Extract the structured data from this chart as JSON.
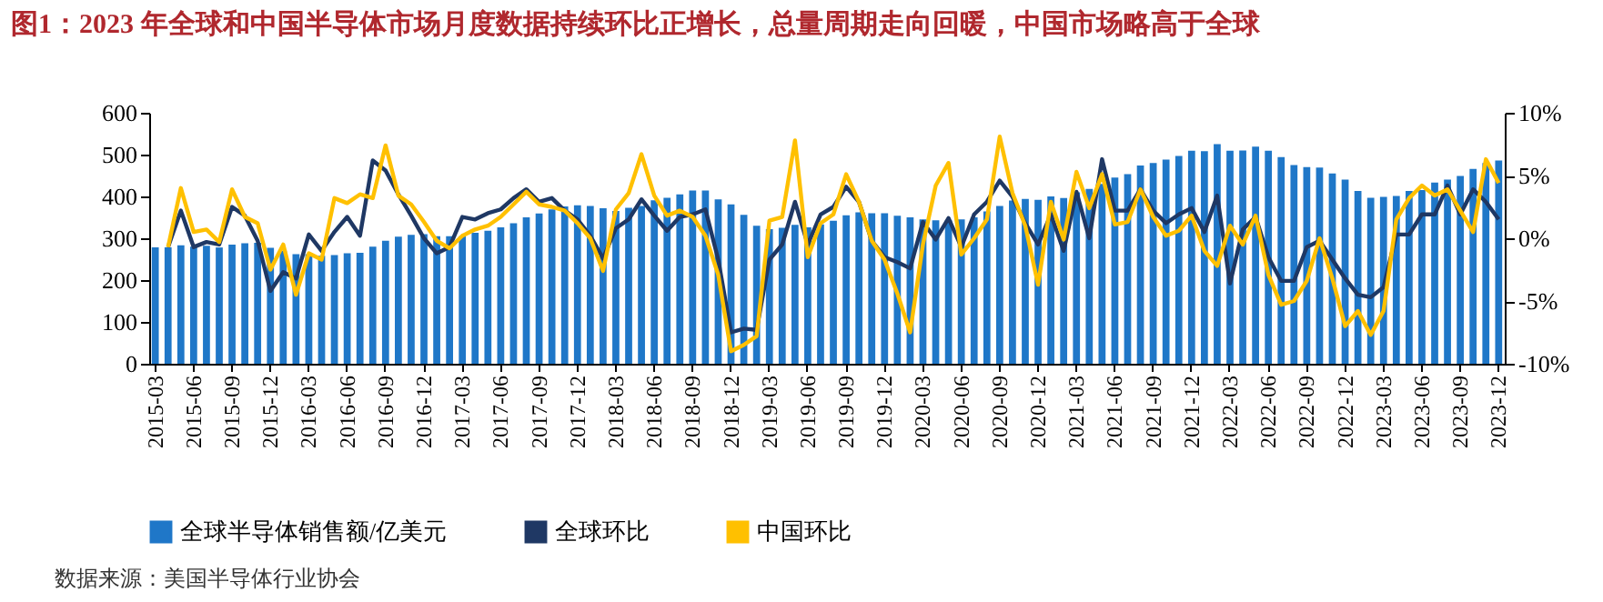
{
  "chart_data": {
    "type": "bar",
    "title": "图1：2023 年全球和中国半导体市场月度数据持续环比正增长，总量周期走向回暖，中国市场略高于全球",
    "categories": [
      "2015-03",
      null,
      null,
      "2015-06",
      null,
      null,
      "2015-09",
      null,
      null,
      "2015-12",
      null,
      null,
      "2016-03",
      null,
      null,
      "2016-06",
      null,
      null,
      "2016-09",
      null,
      null,
      "2016-12",
      null,
      null,
      "2017-03",
      null,
      null,
      "2017-06",
      null,
      null,
      "2017-09",
      null,
      null,
      "2017-12",
      null,
      null,
      "2018-03",
      null,
      null,
      "2018-06",
      null,
      null,
      "2018-09",
      null,
      null,
      "2018-12",
      null,
      null,
      "2019-03",
      null,
      null,
      "2019-06",
      null,
      null,
      "2019-09",
      null,
      null,
      "2019-12",
      null,
      null,
      "2020-03",
      null,
      null,
      "2020-06",
      null,
      null,
      "2020-09",
      null,
      null,
      "2020-12",
      null,
      null,
      "2021-03",
      null,
      null,
      "2021-06",
      null,
      null,
      "2021-09",
      null,
      null,
      "2021-12",
      null,
      null,
      "2022-03",
      null,
      null,
      "2022-06",
      null,
      null,
      "2022-09",
      null,
      null,
      "2022-12",
      null,
      null,
      "2023-03",
      null,
      null,
      "2023-06",
      null,
      null,
      "2023-09",
      null,
      null,
      "2023-12"
    ],
    "series": [
      {
        "name": "全球半导体销售额/亿美元",
        "color": "#1f77c8",
        "values": [
          278,
          278,
          283,
          280,
          282,
          278,
          285,
          288,
          289,
          277,
          270,
          262,
          262,
          258,
          260,
          264,
          265,
          280,
          294,
          304,
          308,
          310,
          305,
          305,
          305,
          313,
          318,
          326,
          336,
          350,
          359,
          369,
          376,
          379,
          377,
          372,
          365,
          373,
          377,
          391,
          397,
          405,
          414,
          414,
          393,
          381,
          356,
          330,
          322,
          325,
          332,
          326,
          333,
          342,
          355,
          362,
          360,
          360,
          354,
          350,
          345,
          343,
          343,
          345,
          350,
          364,
          377,
          390,
          394,
          392,
          400,
          396,
          410,
          418,
          430,
          445,
          453,
          474,
          480,
          488,
          497,
          509,
          508,
          525,
          509,
          510,
          519,
          509,
          494,
          475,
          470,
          469,
          455,
          440,
          413,
          397,
          399,
          401,
          413,
          415,
          433,
          440,
          449,
          466,
          480,
          486
        ]
      },
      {
        "name": "全球环比",
        "type": "line",
        "axis": "y2",
        "color": "#1f3864",
        "values": [
          null,
          -0.7,
          2.2,
          -0.7,
          -0.3,
          -0.5,
          2.5,
          1.8,
          -0.2,
          -4.2,
          -2.7,
          -3.2,
          0.3,
          -1.0,
          0.5,
          1.7,
          0.2,
          6.2,
          5.4,
          3.5,
          1.8,
          0,
          -1.2,
          -0.7,
          1.7,
          1.5,
          2.0,
          2.3,
          3.2,
          3.9,
          2.9,
          3.2,
          2.2,
          1.5,
          0.2,
          -1.6,
          0.8,
          1.5,
          3.1,
          1.8,
          0.6,
          1.7,
          1.9,
          2.3,
          -1.7,
          -7.5,
          -7.2,
          -7.3,
          -1.7,
          -0.5,
          2.9,
          -0.5,
          1.9,
          2.5,
          4.1,
          2.9,
          -0.2,
          -1.5,
          -1.9,
          -2.4,
          1.3,
          -0.1,
          1.6,
          -0.7,
          1.9,
          2.9,
          4.6,
          3.3,
          1.2,
          -0.5,
          1.9,
          -1.0,
          3.7,
          0,
          6.3,
          2.2,
          2.2,
          3.9,
          2.2,
          1.2,
          1.9,
          2.4,
          0.5,
          3.4,
          -3.6,
          0.7,
          1.7,
          -1.5,
          -3.4,
          -3.4,
          -0.7,
          -0.2,
          -1.7,
          -3.2,
          -4.5,
          -4.7,
          -3.9,
          0.3,
          0.3,
          1.9,
          1.9,
          4.2,
          1.9,
          3.9,
          2.9,
          1.5
        ]
      },
      {
        "name": "中国环比",
        "type": "line",
        "axis": "y2",
        "color": "#ffc000",
        "values": [
          null,
          -0.7,
          4.0,
          0.5,
          0.7,
          -0.3,
          3.9,
          1.7,
          1.2,
          -2.5,
          -0.5,
          -4.5,
          -1.2,
          -1.7,
          3.2,
          2.8,
          3.5,
          3.2,
          7.4,
          3.4,
          2.7,
          1.3,
          -0.2,
          -0.8,
          0.2,
          0.7,
          1.0,
          1.7,
          2.7,
          3.7,
          2.7,
          2.5,
          2.2,
          1.2,
          0,
          -2.6,
          2.3,
          3.6,
          6.7,
          3.4,
          1.8,
          2.2,
          1.7,
          0.2,
          -2.9,
          -9.0,
          -8.5,
          -7.8,
          1.4,
          1.7,
          7.8,
          -1.5,
          1.2,
          1.9,
          5.1,
          2.9,
          -0.2,
          -1.7,
          -4.4,
          -7.5,
          -0.5,
          4.2,
          6.0,
          -1.3,
          0,
          1.5,
          8.1,
          3.6,
          1.0,
          -3.7,
          2.9,
          -0.1,
          5.3,
          2.4,
          5.1,
          1.1,
          1.3,
          3.9,
          1.7,
          0.2,
          0.6,
          1.8,
          -1.0,
          -2.2,
          1.0,
          -0.5,
          1.8,
          -2.9,
          -5.3,
          -5.0,
          -3.4,
          0,
          -3.2,
          -7.0,
          -5.8,
          -7.7,
          -5.8,
          1.5,
          3.2,
          4.2,
          3.4,
          3.9,
          2.2,
          0.5,
          6.3,
          4.4
        ]
      }
    ],
    "ylim": [
      0,
      600
    ],
    "yticks": [
      0,
      100,
      200,
      300,
      400,
      500,
      600
    ],
    "y2lim": [
      -10,
      10
    ],
    "y2ticks": [
      {
        "value": -10,
        "label": "-10%"
      },
      {
        "value": -5,
        "label": "-5%"
      },
      {
        "value": 0,
        "label": "0%"
      },
      {
        "value": 5,
        "label": "5%"
      },
      {
        "value": 10,
        "label": "10%"
      }
    ],
    "grid": false,
    "legend": "bottom",
    "annotations": [
      "数据来源：美国半导体行业协会"
    ]
  }
}
